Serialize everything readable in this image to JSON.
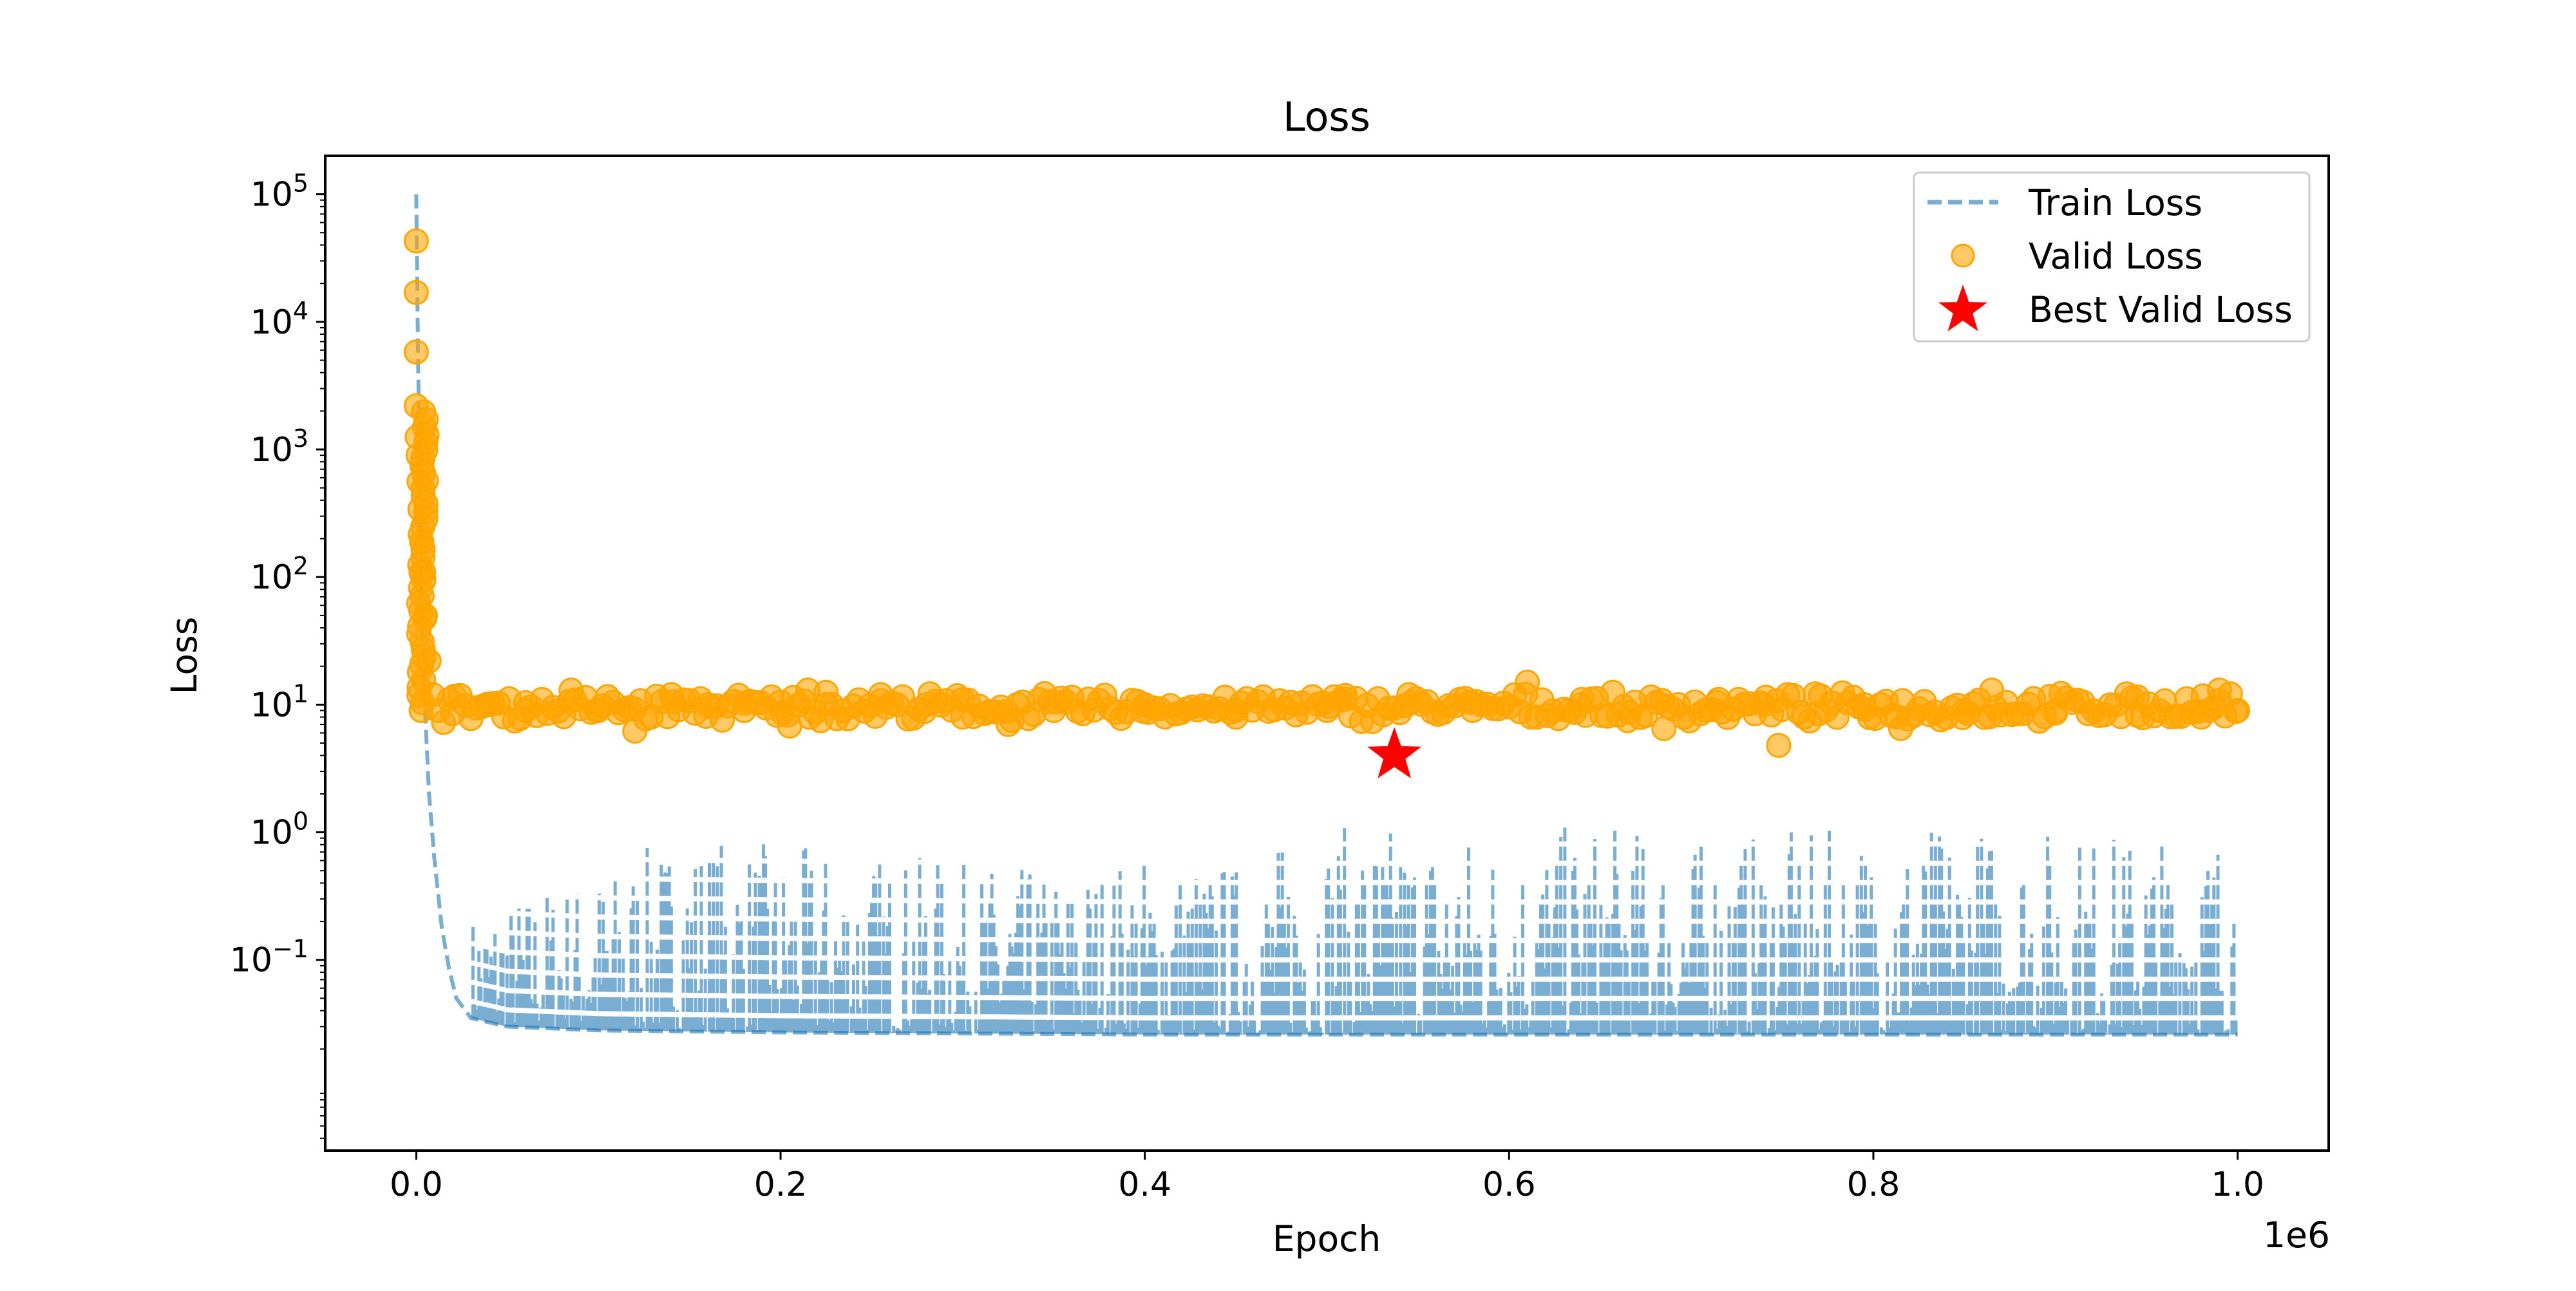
{
  "chart_data": {
    "type": "line",
    "title": "Loss",
    "xlabel": "Epoch",
    "ylabel": "Loss",
    "x_offset_label": "1e6",
    "x_scale": "linear",
    "y_scale": "log",
    "xlim": [
      -50000,
      1050000
    ],
    "ylim": [
      0.0032,
      200000
    ],
    "grid": false,
    "legend_position": "upper right",
    "x_ticks": [
      {
        "value": 0,
        "label": "0.0"
      },
      {
        "value": 200000,
        "label": "0.2"
      },
      {
        "value": 400000,
        "label": "0.4"
      },
      {
        "value": 600000,
        "label": "0.6"
      },
      {
        "value": 800000,
        "label": "0.8"
      },
      {
        "value": 1000000,
        "label": "1.0"
      }
    ],
    "y_ticks": [
      {
        "value": 100000,
        "base": "10",
        "exp": "5"
      },
      {
        "value": 10000,
        "base": "10",
        "exp": "4"
      },
      {
        "value": 1000,
        "base": "10",
        "exp": "3"
      },
      {
        "value": 100,
        "base": "10",
        "exp": "2"
      },
      {
        "value": 10,
        "base": "10",
        "exp": "1"
      },
      {
        "value": 1,
        "base": "10",
        "exp": "0"
      },
      {
        "value": 0.1,
        "base": "10",
        "exp": "−1"
      }
    ],
    "series": [
      {
        "name": "Train Loss",
        "kind": "dashed-line",
        "color": "#1f77b4",
        "alpha": 0.6,
        "x": [
          0,
          1000,
          2000,
          3000,
          5000,
          7000,
          10000,
          14000,
          18000,
          22000,
          30000,
          50000,
          100000,
          200000,
          400000,
          600000,
          800000,
          1000000
        ],
        "y": [
          100000,
          5000,
          500,
          60,
          8,
          2,
          0.6,
          0.18,
          0.085,
          0.05,
          0.035,
          0.03,
          0.028,
          0.027,
          0.026,
          0.026,
          0.026,
          0.026
        ],
        "spike_envelope": {
          "x": [
            30000,
            60000,
            100000,
            150000,
            200000,
            250000,
            300000,
            350000,
            400000,
            450000,
            500000,
            550000,
            600000,
            650000,
            700000,
            750000,
            800000,
            850000,
            900000,
            950000,
            1000000
          ],
          "y": [
            0.25,
            0.35,
            0.5,
            1.0,
            0.8,
            0.7,
            0.6,
            0.5,
            0.7,
            0.6,
            1.1,
            1.2,
            1.0,
            1.2,
            0.9,
            1.0,
            1.1,
            1.2,
            1.1,
            1.0,
            1.2
          ]
        }
      },
      {
        "name": "Valid Loss",
        "kind": "scatter",
        "color": "#ffa500",
        "alpha": 0.6,
        "x": [
          0,
          0,
          0,
          0,
          500,
          1000,
          1500,
          2000,
          3000,
          4000,
          5000,
          7000,
          9000,
          12000,
          20000,
          40000,
          60000,
          85000,
          100000,
          120000,
          140000,
          160000,
          180000,
          200000,
          205000,
          215000,
          225000,
          255000,
          280000,
          300000,
          325000,
          350000,
          400000,
          450000,
          500000,
          510000,
          545000,
          580000,
          610000,
          640000,
          665000,
          685000,
          715000,
          740000,
          748000,
          770000,
          795000,
          815000,
          850000,
          865000,
          900000,
          945000,
          980000,
          990000,
          1000000
        ],
        "y": [
          43000,
          17000,
          5800,
          2200,
          1250,
          900,
          560,
          340,
          190,
          110,
          50,
          22,
          12,
          9,
          8.5,
          10,
          9,
          13,
          9,
          6.2,
          12,
          10,
          9,
          10.5,
          6.8,
          13,
          12.5,
          12,
          10,
          8,
          7,
          9,
          10,
          9,
          9,
          11.8,
          12,
          9,
          15,
          11,
          7.5,
          6.5,
          11,
          10,
          4.8,
          8.5,
          10,
          6.5,
          9,
          13,
          9,
          11.5,
          8,
          13,
          9
        ],
        "band": {
          "x": [
            15000,
            1000000
          ],
          "y_center": 9.5
        }
      },
      {
        "name": "Best Valid Loss",
        "kind": "star-marker",
        "color": "#ff0000",
        "x": [
          537000
        ],
        "y": [
          4.0
        ]
      }
    ]
  }
}
